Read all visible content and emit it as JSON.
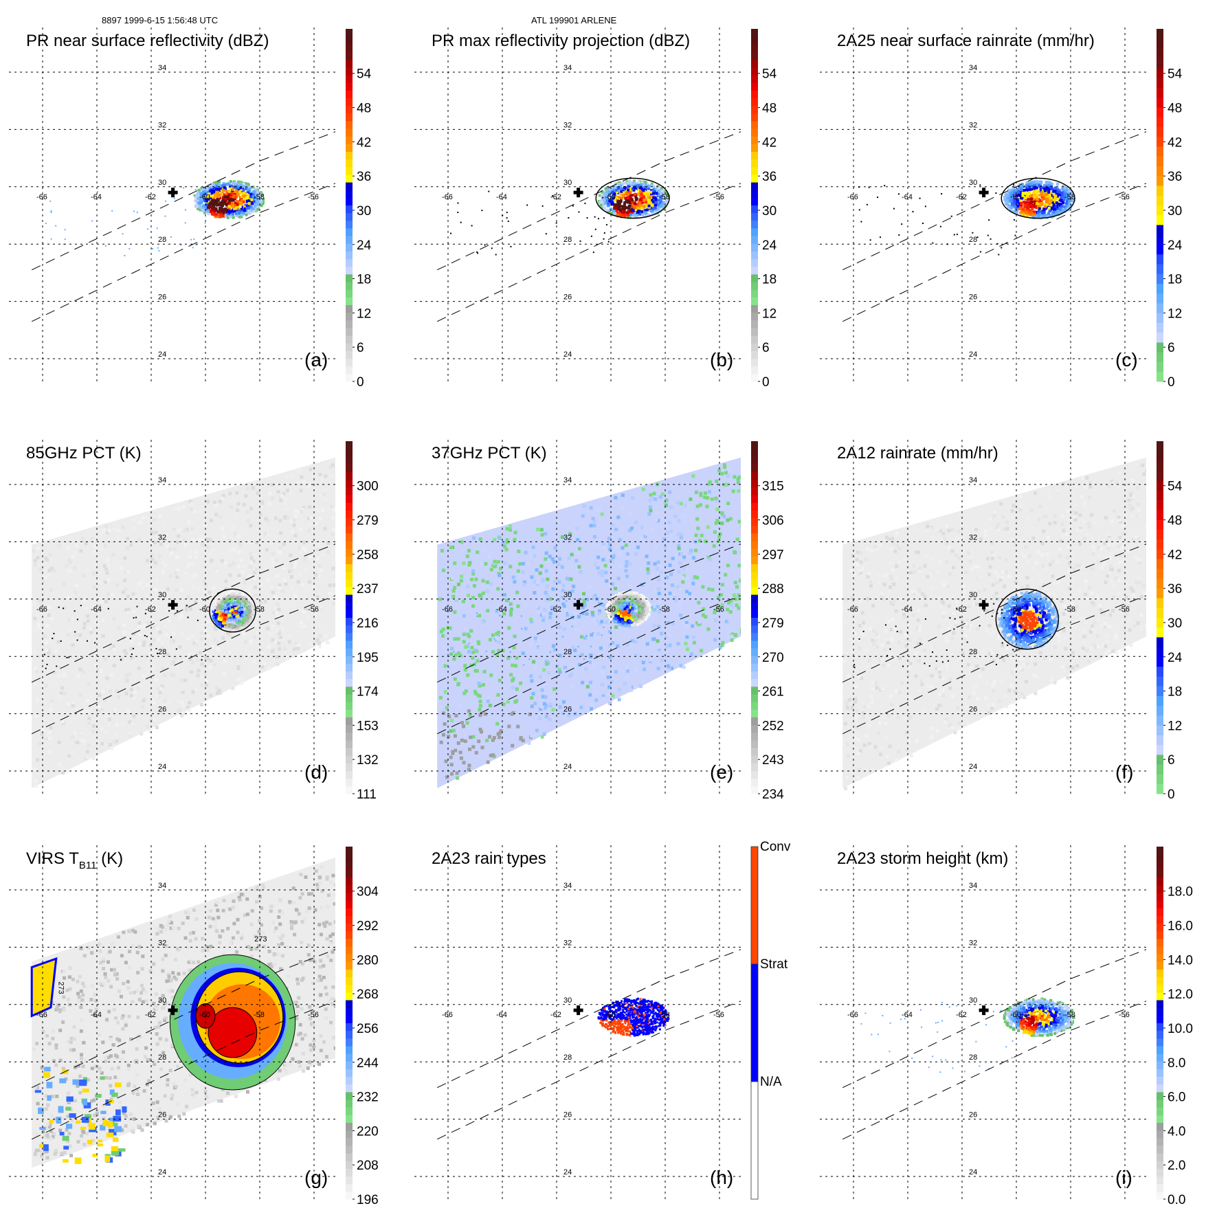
{
  "header": {
    "left": "8897 1999-6-15 1:56:48 UTC",
    "center": "ATL 199901 ARLENE"
  },
  "chart_data": [
    {
      "type": "heatmap",
      "id": "a",
      "panel_label": "(a)",
      "title": "PR near surface reflectivity (dBZ)",
      "field": "pr_nsr",
      "colorbar": {
        "ticks": [
          "0",
          "6",
          "12",
          "18",
          "24",
          "30",
          "36",
          "42",
          "48",
          "54"
        ],
        "min": 0,
        "max": 60,
        "scheme": "grey-green-blue-yellow-red"
      },
      "swath": "pr",
      "contours": false,
      "features": [
        {
          "lon": -59.2,
          "lat": 29.6,
          "rx": 1.3,
          "ry": 0.65,
          "peak_value": 52
        }
      ]
    },
    {
      "type": "heatmap",
      "id": "b",
      "panel_label": "(b)",
      "title": "PR max reflectivity projection (dBZ)",
      "field": "pr_max",
      "colorbar": {
        "ticks": [
          "0",
          "6",
          "12",
          "18",
          "24",
          "30",
          "36",
          "42",
          "48",
          "54"
        ],
        "min": 0,
        "max": 60,
        "scheme": "grey-green-blue-yellow-red"
      },
      "swath": "pr",
      "contours": true,
      "features": [
        {
          "lon": -59.2,
          "lat": 29.6,
          "rx": 1.3,
          "ry": 0.65,
          "peak_value": 50
        }
      ]
    },
    {
      "type": "heatmap",
      "id": "c",
      "panel_label": "(c)",
      "title": "2A25 near surface rainrate (mm/hr)",
      "field": "pr_rain",
      "colorbar": {
        "ticks": [
          "0",
          "6",
          "12",
          "18",
          "24",
          "30",
          "36",
          "42",
          "48",
          "54"
        ],
        "min": 0,
        "max": 60,
        "scheme": "green-blue-yellow-red"
      },
      "swath": "pr",
      "contours": true,
      "features": [
        {
          "lon": -59.2,
          "lat": 29.6,
          "rx": 1.3,
          "ry": 0.65,
          "peak_value": 40
        }
      ]
    },
    {
      "type": "heatmap",
      "id": "d",
      "panel_label": "(d)",
      "title": "85GHz PCT (K)",
      "field": "tmi85",
      "colorbar": {
        "ticks": [
          "111",
          "132",
          "153",
          "174",
          "195",
          "216",
          "237",
          "258",
          "279",
          "300"
        ],
        "min": 90,
        "max": 300,
        "reversed": true,
        "scheme": "grey-green-blue-yellow-red"
      },
      "swath": "tmi",
      "contours": true,
      "features": [
        {
          "lon": -59.0,
          "lat": 29.6,
          "rx": 0.8,
          "ry": 0.7,
          "peak_value": 120
        }
      ]
    },
    {
      "type": "heatmap",
      "id": "e",
      "panel_label": "(e)",
      "title": "37GHz PCT (K)",
      "field": "tmi37",
      "colorbar": {
        "ticks": [
          "234",
          "243",
          "252",
          "261",
          "270",
          "279",
          "288",
          "297",
          "306",
          "315"
        ],
        "min": 225,
        "max": 315,
        "reversed": true,
        "scheme": "grey-green-blue-yellow-red"
      },
      "swath": "tmi",
      "contours": false,
      "features": [
        {
          "lon": -59.4,
          "lat": 29.7,
          "rx": 0.8,
          "ry": 0.6,
          "peak_value": 250
        }
      ]
    },
    {
      "type": "heatmap",
      "id": "f",
      "panel_label": "(f)",
      "title": "2A12 rainrate (mm/hr)",
      "field": "tmi_rain",
      "colorbar": {
        "ticks": [
          "0",
          "6",
          "12",
          "18",
          "24",
          "30",
          "36",
          "42",
          "48",
          "54"
        ],
        "min": 0,
        "max": 60,
        "scheme": "green-blue-yellow-red"
      },
      "swath": "tmi",
      "contours": true,
      "features": [
        {
          "lon": -59.6,
          "lat": 29.3,
          "rx": 1.1,
          "ry": 1.0,
          "peak_value": 30
        }
      ]
    },
    {
      "type": "heatmap",
      "id": "g",
      "panel_label": "(g)",
      "title": "VIRS T",
      "title_sub": "B11",
      "title_suffix": " (K)",
      "field": "virs",
      "colorbar": {
        "ticks": [
          "196",
          "208",
          "220",
          "232",
          "244",
          "256",
          "268",
          "280",
          "292",
          "304"
        ],
        "min": 184,
        "max": 304,
        "reversed": true,
        "scheme": "grey-green-blue-yellow-red"
      },
      "swath": "virs",
      "contours": true,
      "contour_label": "273",
      "features": [
        {
          "lon": -59.0,
          "lat": 29.5,
          "rx": 1.6,
          "ry": 1.4,
          "peak_value": 200
        }
      ]
    },
    {
      "type": "heatmap",
      "id": "h",
      "panel_label": "(h)",
      "title": "2A23 rain types",
      "field": "rain_type",
      "colorbar": {
        "ticks": [
          "N/A",
          "Strat",
          "Conv"
        ],
        "categories": [
          "N/A",
          "Strat",
          "Conv"
        ],
        "colors": [
          "#ffffff",
          "#0000ff",
          "#ff4500"
        ]
      },
      "swath": "pr",
      "contours": false,
      "features": [
        {
          "lon": -59.2,
          "lat": 29.6,
          "rx": 1.3,
          "ry": 0.65
        }
      ]
    },
    {
      "type": "heatmap",
      "id": "i",
      "panel_label": "(i)",
      "title": "2A23 storm height (km)",
      "field": "storm_height",
      "colorbar": {
        "ticks": [
          "0.0",
          "2.0",
          "4.0",
          "6.0",
          "8.0",
          "10.0",
          "12.0",
          "14.0",
          "16.0",
          "18.0"
        ],
        "min": 0,
        "max": 20,
        "scheme": "grey-green-blue-yellow-red"
      },
      "swath": "pr",
      "contours": false,
      "features": [
        {
          "lon": -59.2,
          "lat": 29.6,
          "rx": 1.3,
          "ry": 0.65,
          "peak_value": 12
        }
      ]
    }
  ],
  "map": {
    "lon_ticks": [
      "-66",
      "-64",
      "-62",
      "-60",
      "-58",
      "-56"
    ],
    "lon_values": [
      -66,
      -64,
      -62,
      -60,
      -58,
      -56
    ],
    "lat_ticks": [
      "34",
      "32",
      "30",
      "28",
      "26",
      "24"
    ],
    "lat_values": [
      34,
      32,
      30,
      28,
      26,
      24
    ],
    "storm_center": {
      "lon": -61.2,
      "lat": 29.8,
      "marker": "plus-icon"
    }
  }
}
